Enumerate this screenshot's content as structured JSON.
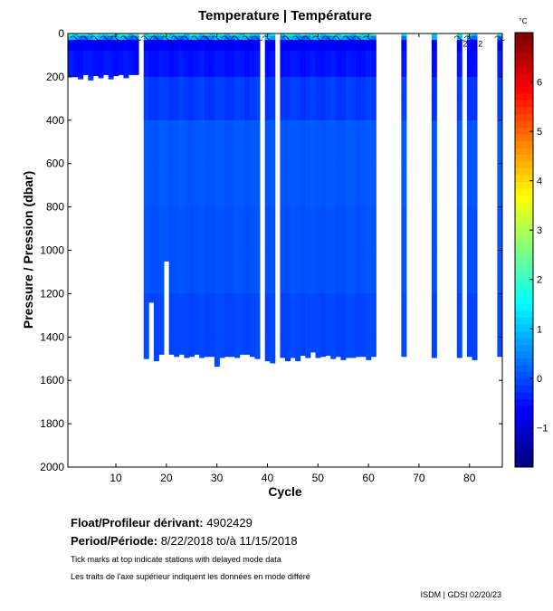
{
  "chart_data": {
    "type": "heatmap",
    "title": "Temperature | Température",
    "xlabel": "Cycle",
    "ylabel": "Pressure / Pression (dbar)",
    "xlim": [
      0.5,
      86.5
    ],
    "ylim": [
      0,
      2000
    ],
    "y_inverted": true,
    "xticks": [
      10,
      20,
      30,
      40,
      50,
      60,
      70,
      80
    ],
    "yticks": [
      0,
      200,
      400,
      600,
      800,
      1000,
      1200,
      1400,
      1600,
      1800,
      2000
    ],
    "colorbar": {
      "unit": "°C",
      "range": [
        -1.8,
        7.0
      ],
      "ticks": [
        -1,
        0,
        1,
        2,
        3,
        4,
        5,
        6
      ],
      "colormap": "jet"
    },
    "contour_label": "2",
    "cycles": [
      {
        "cycle": 1,
        "max_pressure": 200
      },
      {
        "cycle": 2,
        "max_pressure": 200
      },
      {
        "cycle": 3,
        "max_pressure": 210
      },
      {
        "cycle": 4,
        "max_pressure": 190
      },
      {
        "cycle": 5,
        "max_pressure": 215
      },
      {
        "cycle": 6,
        "max_pressure": 195
      },
      {
        "cycle": 7,
        "max_pressure": 205
      },
      {
        "cycle": 8,
        "max_pressure": 190
      },
      {
        "cycle": 9,
        "max_pressure": 210
      },
      {
        "cycle": 10,
        "max_pressure": 195
      },
      {
        "cycle": 11,
        "max_pressure": 190
      },
      {
        "cycle": 12,
        "max_pressure": 205
      },
      {
        "cycle": 13,
        "max_pressure": 190
      },
      {
        "cycle": 14,
        "max_pressure": 190
      },
      {
        "cycle": 16,
        "max_pressure": 1500
      },
      {
        "cycle": 17,
        "max_pressure": 1240
      },
      {
        "cycle": 18,
        "max_pressure": 1510
      },
      {
        "cycle": 19,
        "max_pressure": 1480
      },
      {
        "cycle": 20,
        "max_pressure": 1050
      },
      {
        "cycle": 21,
        "max_pressure": 1480
      },
      {
        "cycle": 22,
        "max_pressure": 1490
      },
      {
        "cycle": 23,
        "max_pressure": 1480
      },
      {
        "cycle": 24,
        "max_pressure": 1495
      },
      {
        "cycle": 25,
        "max_pressure": 1490
      },
      {
        "cycle": 26,
        "max_pressure": 1480
      },
      {
        "cycle": 27,
        "max_pressure": 1495
      },
      {
        "cycle": 28,
        "max_pressure": 1490
      },
      {
        "cycle": 29,
        "max_pressure": 1490
      },
      {
        "cycle": 30,
        "max_pressure": 1535
      },
      {
        "cycle": 31,
        "max_pressure": 1495
      },
      {
        "cycle": 32,
        "max_pressure": 1490
      },
      {
        "cycle": 33,
        "max_pressure": 1490
      },
      {
        "cycle": 34,
        "max_pressure": 1495
      },
      {
        "cycle": 35,
        "max_pressure": 1480
      },
      {
        "cycle": 36,
        "max_pressure": 1480
      },
      {
        "cycle": 37,
        "max_pressure": 1490
      },
      {
        "cycle": 38,
        "max_pressure": 1500
      },
      {
        "cycle": 40,
        "max_pressure": 1510
      },
      {
        "cycle": 41,
        "max_pressure": 1520
      },
      {
        "cycle": 43,
        "max_pressure": 1495
      },
      {
        "cycle": 44,
        "max_pressure": 1510
      },
      {
        "cycle": 45,
        "max_pressure": 1495
      },
      {
        "cycle": 46,
        "max_pressure": 1510
      },
      {
        "cycle": 47,
        "max_pressure": 1485
      },
      {
        "cycle": 48,
        "max_pressure": 1495
      },
      {
        "cycle": 49,
        "max_pressure": 1470
      },
      {
        "cycle": 50,
        "max_pressure": 1495
      },
      {
        "cycle": 51,
        "max_pressure": 1490
      },
      {
        "cycle": 52,
        "max_pressure": 1485
      },
      {
        "cycle": 53,
        "max_pressure": 1500
      },
      {
        "cycle": 54,
        "max_pressure": 1490
      },
      {
        "cycle": 55,
        "max_pressure": 1505
      },
      {
        "cycle": 56,
        "max_pressure": 1495
      },
      {
        "cycle": 57,
        "max_pressure": 1495
      },
      {
        "cycle": 58,
        "max_pressure": 1490
      },
      {
        "cycle": 59,
        "max_pressure": 1490
      },
      {
        "cycle": 60,
        "max_pressure": 1505
      },
      {
        "cycle": 61,
        "max_pressure": 1490
      },
      {
        "cycle": 67,
        "max_pressure": 1490
      },
      {
        "cycle": 73,
        "max_pressure": 1495
      },
      {
        "cycle": 78,
        "max_pressure": 1495
      },
      {
        "cycle": 80,
        "max_pressure": 1490
      },
      {
        "cycle": 81,
        "max_pressure": 1505
      },
      {
        "cycle": 86,
        "max_pressure": 1490
      }
    ]
  },
  "info": {
    "float_label": "Float/Profileur dérivant:",
    "float_value": "4902429",
    "period_label": "Period/Période:",
    "period_value": "8/22/2018  to/à  11/15/2018",
    "note_en": "Tick marks at top indicate stations with delayed mode data",
    "note_fr": "Les traits de l'axe supérieur indiquent les données en mode différé",
    "credit": "ISDM | GDSI  02/20/23"
  }
}
